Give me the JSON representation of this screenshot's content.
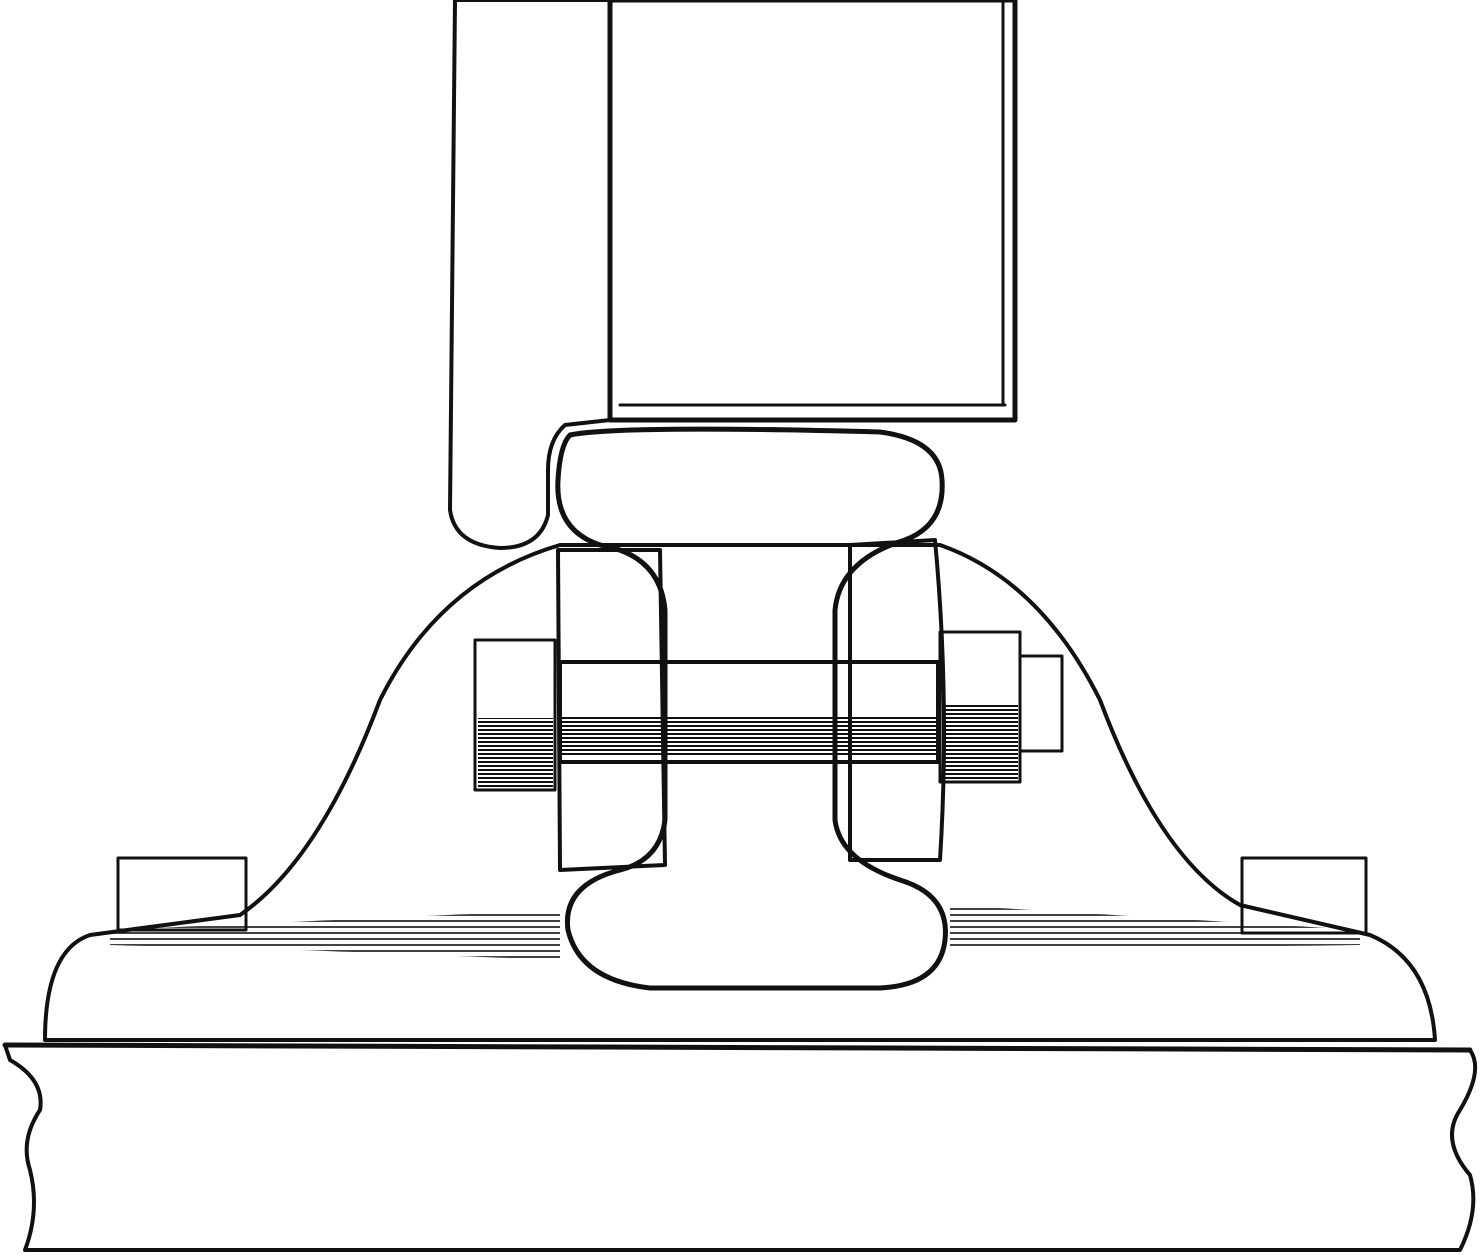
{
  "figure": {
    "subject": "engraving",
    "style": "black-and-white line engraving with hatching",
    "colors": {
      "ink": "#111111",
      "paper": "#ffffff"
    },
    "parts": [
      {
        "name": "rail-bar",
        "hatch": "vertical"
      },
      {
        "name": "wheel-block",
        "hatch": "none"
      },
      {
        "name": "bullhead-rail",
        "hatch": "diagonal"
      },
      {
        "name": "fish-plate-left",
        "hatch": "diagonal"
      },
      {
        "name": "fish-plate-right",
        "hatch": "diagonal"
      },
      {
        "name": "bolt",
        "hatch": "horizontal"
      },
      {
        "name": "rail-chair",
        "hatch": "horizontal"
      },
      {
        "name": "sleeper-base",
        "hatch": "horizontal"
      }
    ]
  }
}
